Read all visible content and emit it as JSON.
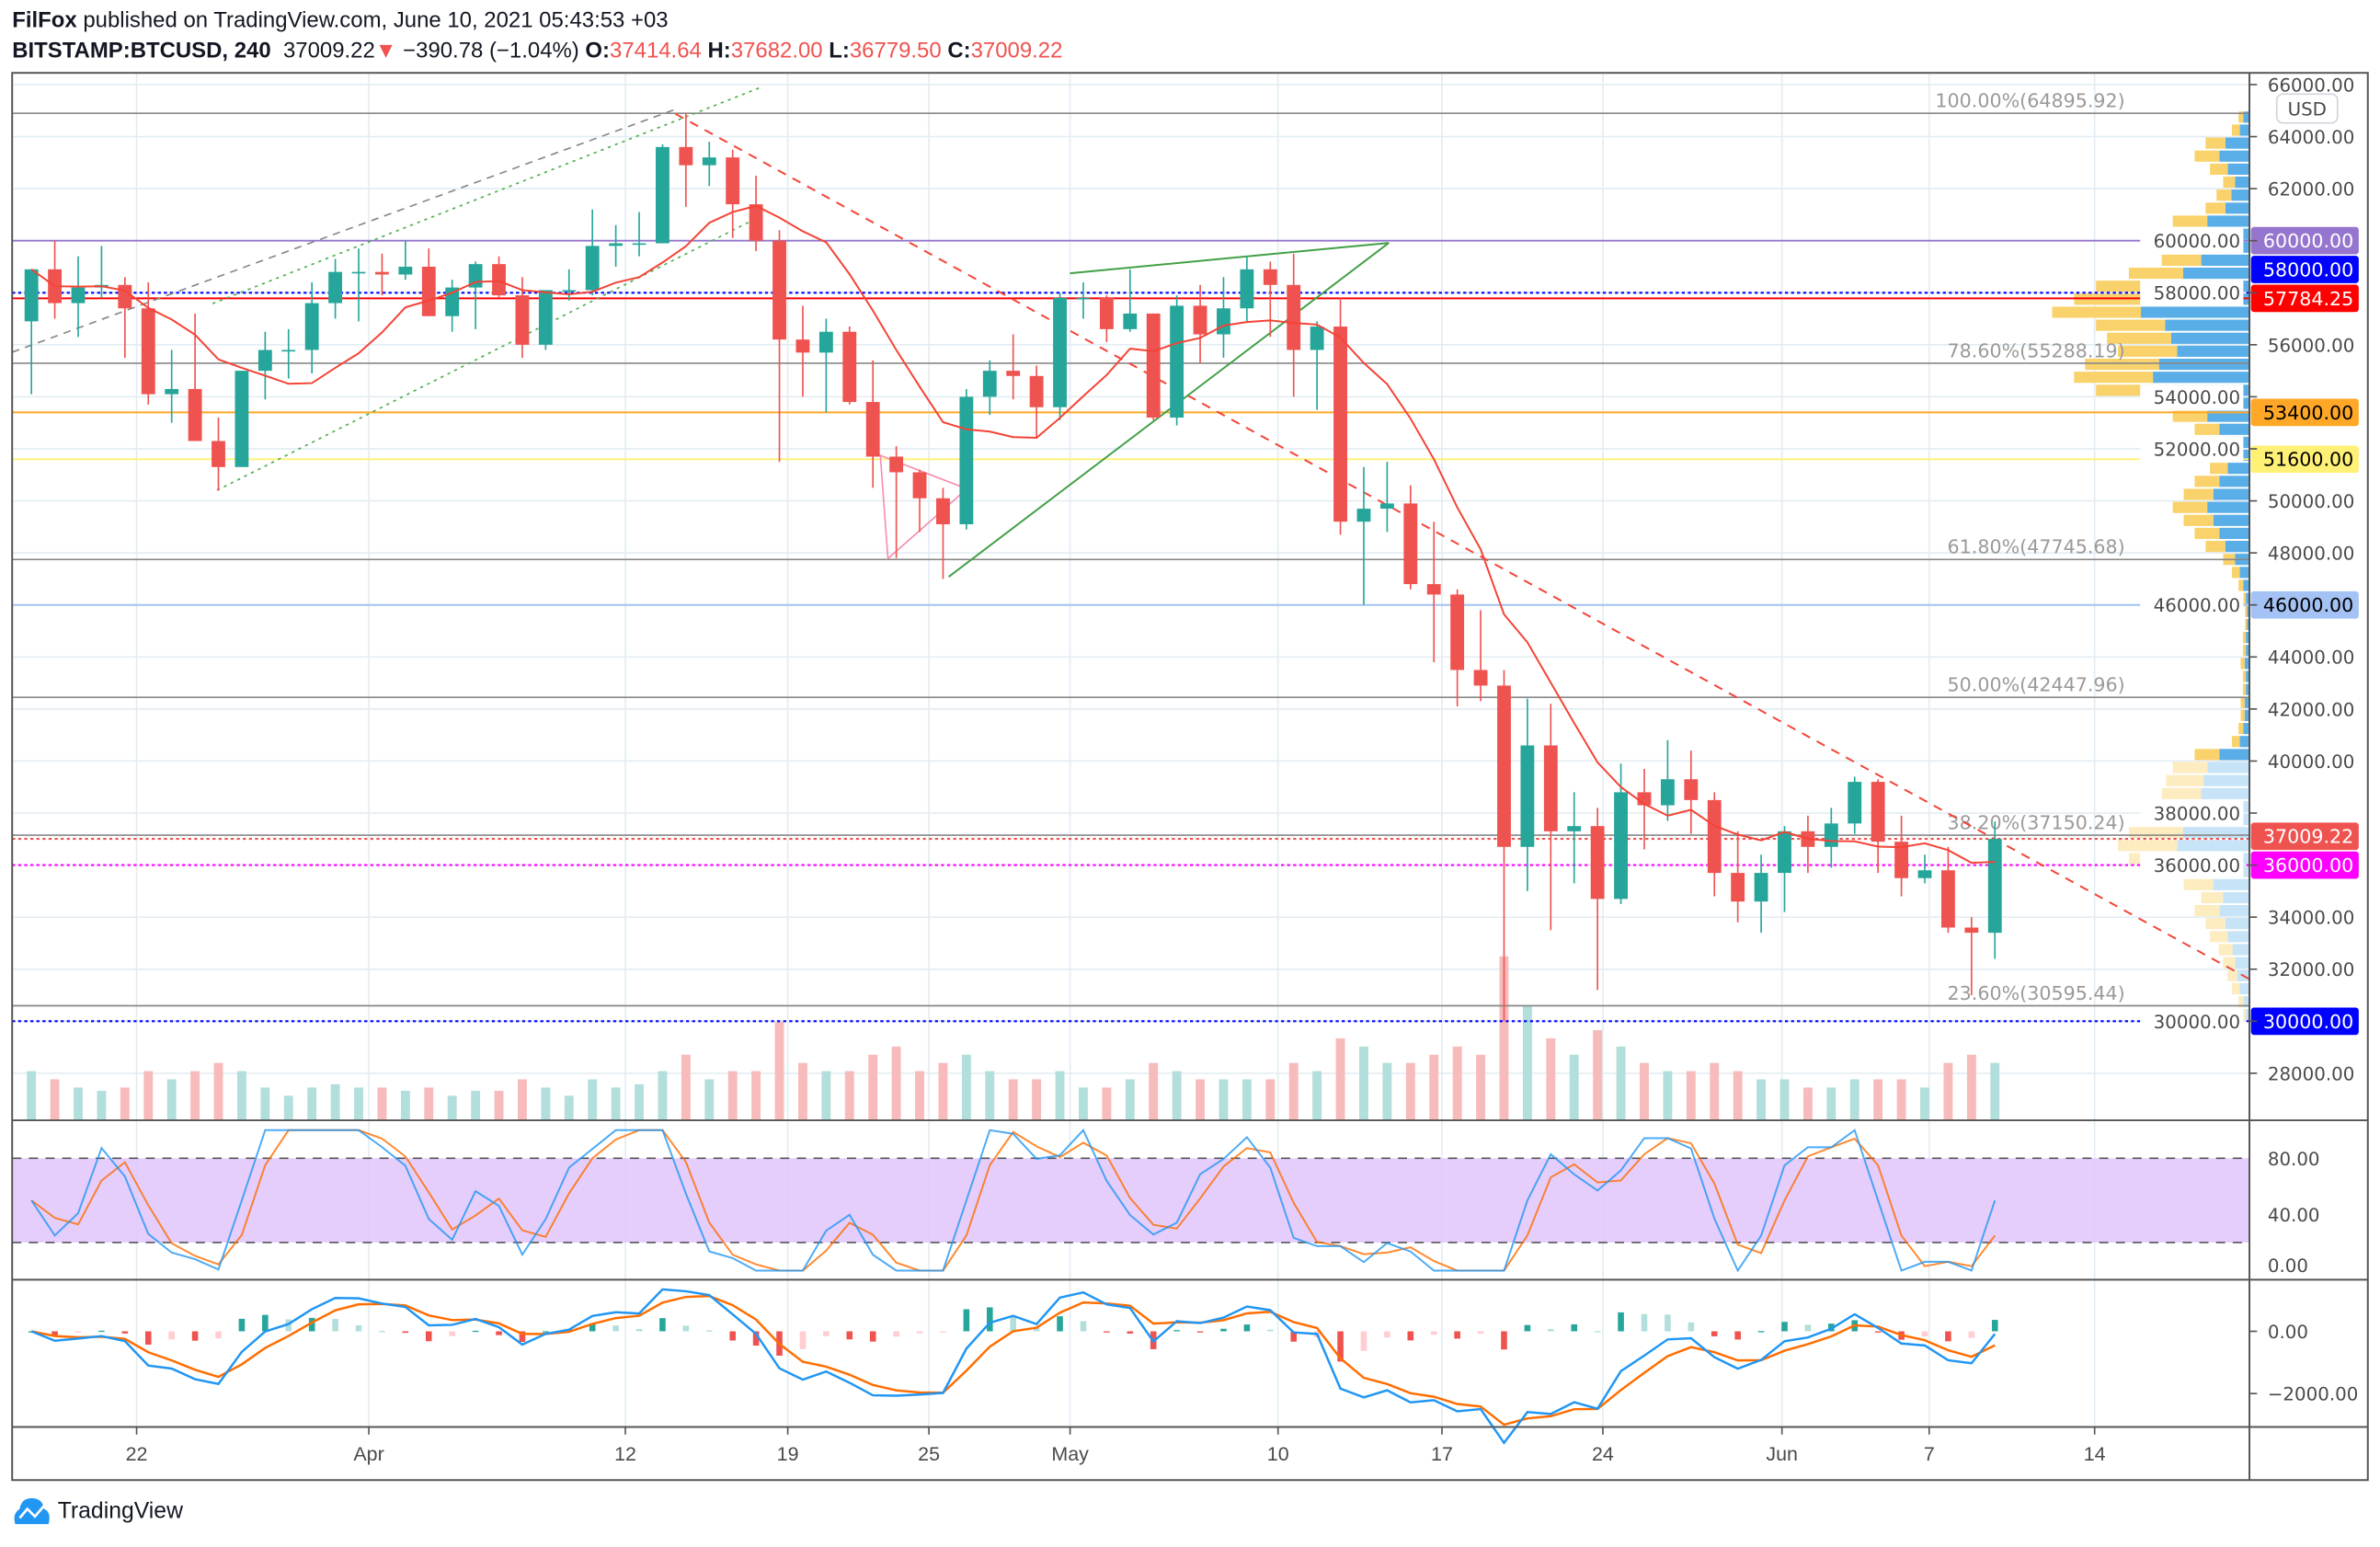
{
  "header": {
    "author": "FilFox",
    "published_text": "published on TradingView.com, June 10, 2021 05:43:53 +03",
    "symbol": "BITSTAMP:BTCUSD, 240",
    "last_price": "37009.22",
    "change": "−390.78 (−1.04%)",
    "open_label": "O:",
    "open": "37414.64",
    "high_label": "H:",
    "high": "37682.00",
    "low_label": "L:",
    "low": "36779.50",
    "close_label": "C:",
    "close": "37009.22",
    "down_arrow_icon": "triangle-down"
  },
  "currency_label": "USD",
  "price_axis": [
    "66000.00",
    "64000.00",
    "62000.00",
    "60000.00",
    "58000.00",
    "56000.00",
    "54000.00",
    "52000.00",
    "50000.00",
    "48000.00",
    "46000.00",
    "44000.00",
    "42000.00",
    "40000.00",
    "38000.00",
    "36000.00",
    "34000.00",
    "32000.00",
    "30000.00",
    "28000.00"
  ],
  "price_axis_values": [
    66000,
    64000,
    62000,
    60000,
    58000,
    56000,
    54000,
    52000,
    50000,
    48000,
    46000,
    44000,
    42000,
    40000,
    38000,
    36000,
    34000,
    32000,
    30000,
    28000
  ],
  "level_badges": [
    {
      "label": "60000.00",
      "value": 60000,
      "bg": "#9575cd",
      "fg": "#ffffff",
      "line": "solid"
    },
    {
      "label": "58000.00",
      "value": 58000,
      "bg": "#0000ff",
      "fg": "#ffffff",
      "line": "dotted"
    },
    {
      "label": "57784.25",
      "value": 57784.25,
      "bg": "#ff0000",
      "fg": "#ffffff",
      "line": "solid"
    },
    {
      "label": "53400.00",
      "value": 53400,
      "bg": "#ffa726",
      "fg": "#000000",
      "line": "solid"
    },
    {
      "label": "51600.00",
      "value": 51600,
      "bg": "#fff176",
      "fg": "#000000",
      "line": "solid"
    },
    {
      "label": "46000.00",
      "value": 46000,
      "bg": "#a4c2f4",
      "fg": "#000000",
      "line": "solid"
    },
    {
      "label": "37009.22",
      "value": 37009.22,
      "bg": "#ef5350",
      "fg": "#ffffff",
      "line": "dotted"
    },
    {
      "label": "36000.00",
      "value": 36000,
      "bg": "#ff00ff",
      "fg": "#ffffff",
      "line": "dotted"
    },
    {
      "label": "30000.00",
      "value": 30000,
      "bg": "#0000ff",
      "fg": "#ffffff",
      "line": "dotted"
    }
  ],
  "fib_levels": [
    {
      "label": "100.00%(64895.92)",
      "value": 64895.92
    },
    {
      "label": "78.60%(55288.19)",
      "value": 55288.19
    },
    {
      "label": "61.80%(47745.68)",
      "value": 47745.68
    },
    {
      "label": "50.00%(42447.96)",
      "value": 42447.96
    },
    {
      "label": "38.20%(37150.24)",
      "value": 37150.24
    },
    {
      "label": "23.60%(30595.44)",
      "value": 30595.44
    }
  ],
  "time_axis": [
    "22",
    "Apr",
    "12",
    "19",
    "25",
    "May",
    "10",
    "17",
    "24",
    "Jun",
    "7",
    "14"
  ],
  "rsi_axis": [
    "80.00",
    "40.00",
    "0.00"
  ],
  "macd_axis": [
    "0.00",
    "−2000.00"
  ],
  "brand": "TradingView",
  "colors": {
    "up": "#26a69a",
    "down": "#ef5350",
    "ma": "#f44336",
    "stoch_k": "#2196f3",
    "stoch_d": "#ff6d00",
    "macd": "#2196f3",
    "signal": "#ff6d00",
    "rsi_band": "#e1c6fb"
  },
  "chart_data": {
    "type": "candlestick",
    "symbol": "BITSTAMP:BTCUSD",
    "start_date": "2021-03-17",
    "ylim": [
      26500,
      66500
    ],
    "ohlc": [
      [
        56900,
        58900,
        54100,
        58900
      ],
      [
        58900,
        60000,
        57000,
        57600
      ],
      [
        57600,
        59400,
        56300,
        58200
      ],
      [
        58200,
        59800,
        57800,
        58300
      ],
      [
        58300,
        58600,
        55500,
        57400
      ],
      [
        57400,
        58400,
        53700,
        54100
      ],
      [
        54100,
        55800,
        53000,
        54300
      ],
      [
        54300,
        57200,
        52600,
        52300
      ],
      [
        52300,
        53200,
        50400,
        51300
      ],
      [
        51300,
        55000,
        51300,
        55000
      ],
      [
        55000,
        56500,
        53900,
        55800
      ],
      [
        55800,
        56600,
        54700,
        55800
      ],
      [
        55800,
        58400,
        54900,
        57600
      ],
      [
        57600,
        59300,
        57000,
        58800
      ],
      [
        58800,
        59700,
        56900,
        58800
      ],
      [
        58800,
        59500,
        57900,
        58700
      ],
      [
        58700,
        60000,
        58500,
        59000
      ],
      [
        59000,
        59700,
        57100,
        57100
      ],
      [
        57100,
        58500,
        56500,
        58200
      ],
      [
        58200,
        59200,
        56600,
        59100
      ],
      [
        59100,
        59400,
        57800,
        57900
      ],
      [
        57900,
        58600,
        55500,
        56000
      ],
      [
        56000,
        58100,
        55800,
        58100
      ],
      [
        58100,
        58900,
        57700,
        58100
      ],
      [
        58100,
        61200,
        57900,
        59800
      ],
      [
        59800,
        60600,
        59000,
        59900
      ],
      [
        59900,
        61100,
        59400,
        59900
      ],
      [
        59900,
        63700,
        59900,
        63600
      ],
      [
        63600,
        64895.92,
        61300,
        62900
      ],
      [
        62900,
        63800,
        62100,
        63200
      ],
      [
        63200,
        63500,
        60100,
        61400
      ],
      [
        61400,
        62500,
        59600,
        60000
      ],
      [
        60000,
        60400,
        51500,
        56200
      ],
      [
        56200,
        57500,
        54000,
        55700
      ],
      [
        55700,
        57000,
        53400,
        56500
      ],
      [
        56500,
        56700,
        53700,
        53800
      ],
      [
        53800,
        55400,
        50500,
        51700
      ],
      [
        51700,
        52100,
        47800,
        51100
      ],
      [
        51100,
        51200,
        48800,
        50100
      ],
      [
        50100,
        50500,
        47000,
        49100
      ],
      [
        49100,
        54300,
        48900,
        54000
      ],
      [
        54000,
        55400,
        53300,
        55000
      ],
      [
        55000,
        56400,
        53900,
        54800
      ],
      [
        54800,
        55200,
        52400,
        53600
      ],
      [
        53600,
        58000,
        53100,
        57800
      ],
      [
        57800,
        58400,
        57000,
        57800
      ],
      [
        57800,
        57900,
        56100,
        56600
      ],
      [
        56600,
        58900,
        56500,
        57200
      ],
      [
        57200,
        57200,
        53100,
        53200
      ],
      [
        53200,
        57900,
        52900,
        57500
      ],
      [
        57500,
        58300,
        55300,
        56400
      ],
      [
        56400,
        58600,
        55500,
        57400
      ],
      [
        57400,
        59400,
        56900,
        58900
      ],
      [
        58900,
        59200,
        56300,
        58300
      ],
      [
        58300,
        59500,
        54000,
        55800
      ],
      [
        55800,
        56900,
        53500,
        56700
      ],
      [
        56700,
        57800,
        48700,
        49200
      ],
      [
        49200,
        51300,
        46000,
        49700
      ],
      [
        49700,
        51500,
        48800,
        49900
      ],
      [
        49900,
        50600,
        46600,
        46800
      ],
      [
        46800,
        49200,
        43800,
        46400
      ],
      [
        46400,
        46600,
        42100,
        43500
      ],
      [
        43500,
        45800,
        42300,
        42900
      ],
      [
        42900,
        43500,
        30000,
        36700
      ],
      [
        36700,
        42400,
        35000,
        40600
      ],
      [
        40600,
        42200,
        33500,
        37300
      ],
      [
        37300,
        38800,
        35300,
        37500
      ],
      [
        37500,
        38200,
        31200,
        34700
      ],
      [
        34700,
        39900,
        34500,
        38800
      ],
      [
        38800,
        39700,
        36600,
        38300
      ],
      [
        38300,
        40800,
        37700,
        39300
      ],
      [
        39300,
        40400,
        37200,
        38500
      ],
      [
        38500,
        38800,
        34800,
        35700
      ],
      [
        35700,
        37300,
        33800,
        34600
      ],
      [
        34600,
        36400,
        33400,
        35700
      ],
      [
        35700,
        37500,
        34200,
        37300
      ],
      [
        37300,
        37900,
        35700,
        36700
      ],
      [
        36700,
        38200,
        35900,
        37600
      ],
      [
        37600,
        39400,
        37200,
        39200
      ],
      [
        39200,
        39300,
        35700,
        36900
      ],
      [
        36900,
        37900,
        34800,
        35500
      ],
      [
        35500,
        36400,
        35300,
        35800
      ],
      [
        35800,
        36700,
        33400,
        33600
      ],
      [
        33600,
        34000,
        31000,
        33400
      ],
      [
        33400,
        37682,
        32400,
        37009.22
      ]
    ],
    "volume_relative": [
      0.3,
      0.25,
      0.2,
      0.18,
      0.2,
      0.3,
      0.25,
      0.3,
      0.35,
      0.3,
      0.2,
      0.15,
      0.2,
      0.22,
      0.2,
      0.2,
      0.18,
      0.2,
      0.15,
      0.18,
      0.18,
      0.25,
      0.2,
      0.15,
      0.25,
      0.2,
      0.22,
      0.3,
      0.4,
      0.25,
      0.3,
      0.3,
      0.6,
      0.35,
      0.3,
      0.3,
      0.4,
      0.45,
      0.3,
      0.35,
      0.4,
      0.3,
      0.25,
      0.25,
      0.3,
      0.2,
      0.2,
      0.25,
      0.35,
      0.3,
      0.25,
      0.25,
      0.25,
      0.25,
      0.35,
      0.3,
      0.5,
      0.45,
      0.35,
      0.35,
      0.4,
      0.45,
      0.4,
      1.0,
      0.7,
      0.5,
      0.4,
      0.55,
      0.45,
      0.35,
      0.3,
      0.3,
      0.35,
      0.3,
      0.25,
      0.25,
      0.2,
      0.2,
      0.25,
      0.25,
      0.25,
      0.2,
      0.35,
      0.4,
      0.35
    ],
    "volume_profile": {
      "bin_size": 500,
      "start": 30000,
      "total": [
        3,
        5,
        8,
        10,
        12,
        14,
        18,
        20,
        25,
        22,
        30,
        40,
        55,
        60,
        55,
        40,
        45,
        40,
        38,
        35,
        25,
        8,
        5,
        4,
        4,
        3,
        3,
        4,
        3,
        3,
        2,
        2,
        3,
        5,
        8,
        12,
        20,
        25,
        30,
        35,
        30,
        25,
        18,
        15,
        20,
        25,
        35,
        45,
        70,
        80,
        75,
        60,
        65,
        70,
        90,
        80,
        70,
        55,
        40,
        30,
        25,
        35,
        20,
        15,
        12,
        18,
        25,
        20,
        8,
        5
      ],
      "up_share": 0.55
    }
  }
}
